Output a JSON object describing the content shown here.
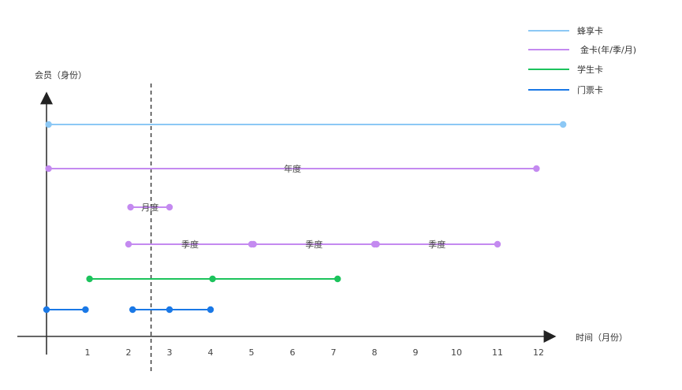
{
  "axes": {
    "y_label": "会员（身份）",
    "x_label": "时间（月份）",
    "x_ticks": [
      "1",
      "2",
      "3",
      "4",
      "5",
      "6",
      "7",
      "8",
      "9",
      "10",
      "11",
      "12"
    ]
  },
  "legend": [
    {
      "name": "蜂享卡",
      "color": "#8cc8f5"
    },
    {
      "name": "金卡(年/季/月)",
      "color": "#c48af0"
    },
    {
      "name": "学生卡",
      "color": "#1cc35c"
    },
    {
      "name": "门票卡",
      "color": "#1a78e6"
    }
  ],
  "marker": {
    "x": 2.55
  },
  "segments": [
    {
      "series": "蜂享卡",
      "row": 1,
      "points": [
        0.05,
        12.6
      ],
      "label": ""
    },
    {
      "series": "金卡(年/季/月)",
      "row": 2,
      "points": [
        0.05,
        11.95
      ],
      "label": "年度"
    },
    {
      "series": "金卡(年/季/月)",
      "row": 3,
      "points": [
        2.05,
        3.0
      ],
      "label": "月度"
    },
    {
      "series": "金卡(年/季/月)",
      "row": 4,
      "points": [
        2.0,
        5.0
      ],
      "label": "季度"
    },
    {
      "series": "金卡(年/季/月)",
      "row": 4,
      "points": [
        5.05,
        8.0
      ],
      "label": "季度"
    },
    {
      "series": "金卡(年/季/月)",
      "row": 4,
      "points": [
        8.05,
        11.0
      ],
      "label": "季度"
    },
    {
      "series": "学生卡",
      "row": 5,
      "points": [
        1.05,
        4.05,
        7.1
      ],
      "label": ""
    },
    {
      "series": "门票卡",
      "row": 6,
      "points": [
        0.0,
        0.95
      ],
      "label": ""
    },
    {
      "series": "门票卡",
      "row": 6,
      "points": [
        2.1,
        3.0,
        4.0
      ],
      "label": ""
    }
  ]
}
